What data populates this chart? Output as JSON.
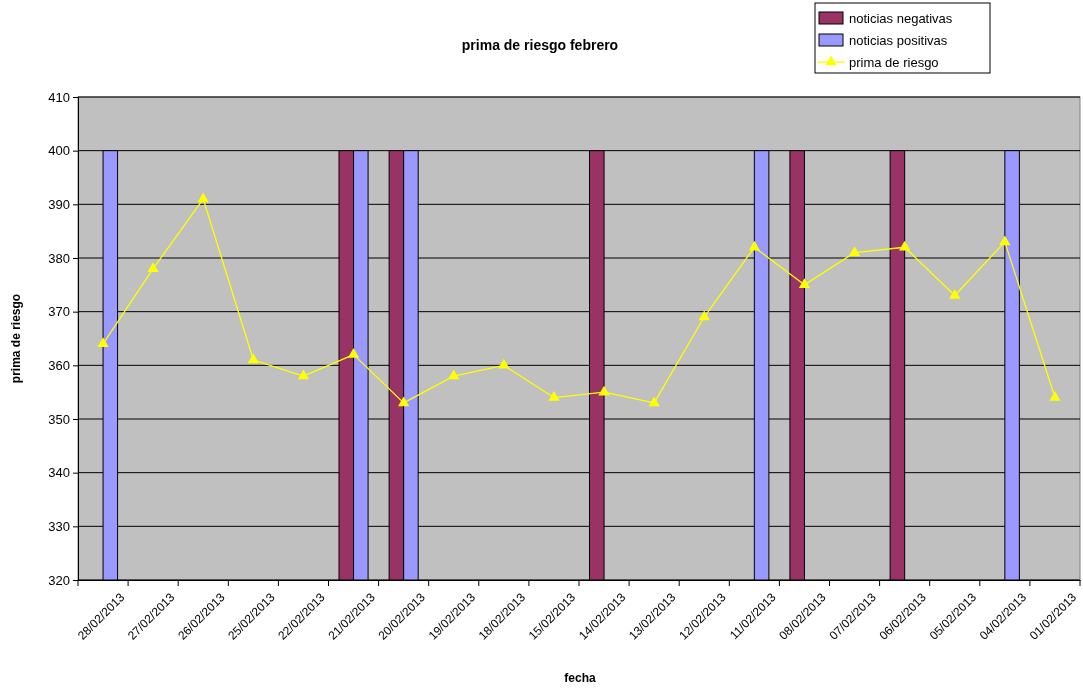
{
  "chart_data": {
    "type": "bar",
    "title": "prima de riesgo febrero",
    "xlabel": "fecha",
    "ylabel": "prima de riesgo",
    "categories": [
      "28/02/2013",
      "27/02/2013",
      "26/02/2013",
      "25/02/2013",
      "22/02/2013",
      "21/02/2013",
      "20/02/2013",
      "19/02/2013",
      "18/02/2013",
      "15/02/2013",
      "14/02/2013",
      "13/02/2013",
      "12/02/2013",
      "11/02/2013",
      "08/02/2013",
      "07/02/2013",
      "06/02/2013",
      "05/02/2013",
      "04/02/2013",
      "01/02/2013"
    ],
    "series": [
      {
        "name": "noticias negativas",
        "color": "#993366",
        "values": [
          null,
          null,
          null,
          null,
          null,
          400,
          400,
          null,
          null,
          null,
          400,
          null,
          null,
          null,
          400,
          null,
          400,
          null,
          null,
          null
        ]
      },
      {
        "name": "noticias positivas",
        "color": "#9999ff",
        "values": [
          400,
          null,
          null,
          null,
          null,
          400,
          400,
          null,
          null,
          null,
          null,
          null,
          null,
          400,
          null,
          null,
          null,
          null,
          400,
          null
        ]
      },
      {
        "name": "prima de riesgo",
        "type": "line",
        "color": "#ffff00",
        "marker": "triangle",
        "values": [
          364,
          378,
          391,
          361,
          358,
          362,
          353,
          358,
          360,
          354,
          355,
          353,
          369,
          382,
          375,
          381,
          382,
          373,
          383,
          354
        ]
      }
    ],
    "ylim": [
      320,
      410
    ],
    "yticks": [
      320,
      330,
      340,
      350,
      360,
      370,
      380,
      390,
      400,
      410
    ],
    "grid": "y",
    "legend": "top right"
  }
}
